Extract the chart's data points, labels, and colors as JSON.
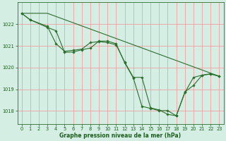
{
  "bg_color": "#d4eee4",
  "plot_bg_color": "#d4eee4",
  "grid_color": "#f0a0a0",
  "line_color": "#2d6e2d",
  "marker_color": "#2d6e2d",
  "xlabel": "Graphe pression niveau de la mer (hPa)",
  "xlabel_color": "#1a5c1a",
  "tick_color": "#1a5c1a",
  "spine_color": "#2d6e2d",
  "ylim": [
    1017.4,
    1023.0
  ],
  "xlim": [
    -0.5,
    23.5
  ],
  "yticks": [
    1018,
    1019,
    1020,
    1021,
    1022
  ],
  "xticks": [
    0,
    1,
    2,
    3,
    4,
    5,
    6,
    7,
    8,
    9,
    10,
    11,
    12,
    13,
    14,
    15,
    16,
    17,
    18,
    19,
    20,
    21,
    22,
    23
  ],
  "series1": {
    "x": [
      0,
      1,
      3,
      4,
      5,
      6,
      7,
      8,
      9,
      10,
      11,
      12,
      13,
      14,
      15,
      16,
      17,
      18,
      19,
      20,
      21,
      22,
      23
    ],
    "y": [
      1022.5,
      1022.2,
      1021.9,
      1021.1,
      1020.75,
      1020.8,
      1020.85,
      1021.15,
      1021.2,
      1021.15,
      1021.05,
      1020.25,
      1019.55,
      1019.55,
      1018.15,
      1018.05,
      1017.85,
      1017.78,
      1018.85,
      1019.55,
      1019.65,
      1019.7,
      1019.6
    ]
  },
  "series2": {
    "x": [
      0,
      1,
      3,
      4,
      5,
      6,
      7,
      8,
      9,
      10,
      11,
      12,
      13,
      14,
      15,
      16,
      17,
      18,
      19,
      20,
      21,
      22,
      23
    ],
    "y": [
      1022.5,
      1022.2,
      1021.85,
      1021.7,
      1020.7,
      1020.72,
      1020.82,
      1020.9,
      1021.22,
      1021.22,
      1021.1,
      1020.22,
      1019.52,
      1018.22,
      1018.12,
      1018.02,
      1018.02,
      1017.78,
      1018.88,
      1019.18,
      1019.65,
      1019.72,
      1019.6
    ]
  },
  "series3": {
    "x": [
      0,
      3,
      23
    ],
    "y": [
      1022.5,
      1022.5,
      1019.6
    ]
  }
}
